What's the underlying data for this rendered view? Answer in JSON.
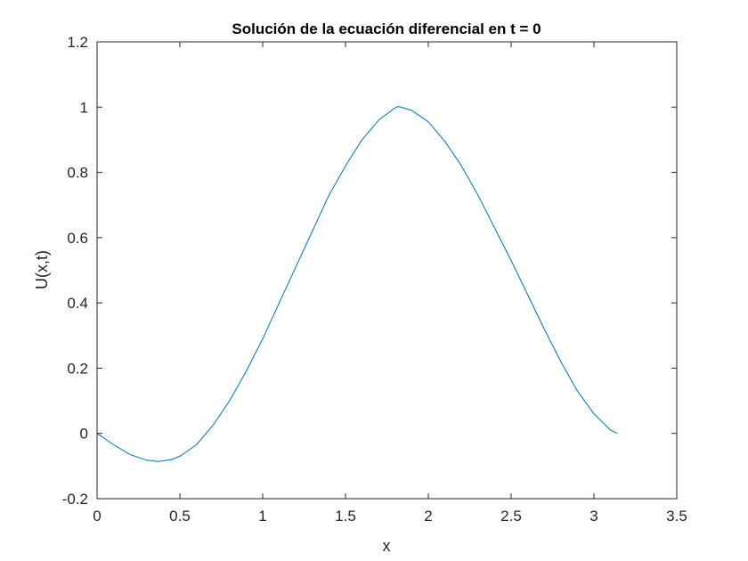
{
  "figure": {
    "background": "#ffffff"
  },
  "chart_data": {
    "type": "line",
    "title": "Solución de la ecuación diferencial en t = 0",
    "xlabel": "x",
    "ylabel": "U(x,t)",
    "xlim": [
      0,
      3.5
    ],
    "ylim": [
      -0.2,
      1.2
    ],
    "xticks": [
      0,
      0.5,
      1,
      1.5,
      2,
      2.5,
      3,
      3.5
    ],
    "xtick_labels": [
      "0",
      "0.5",
      "1",
      "1.5",
      "2",
      "2.5",
      "3",
      "3.5"
    ],
    "yticks": [
      -0.2,
      0,
      0.2,
      0.4,
      0.6,
      0.8,
      1,
      1.2
    ],
    "ytick_labels": [
      "-0.2",
      "0",
      "0.2",
      "0.4",
      "0.6",
      "0.8",
      "1",
      "1.2"
    ],
    "grid": false,
    "box": true,
    "series": [
      {
        "color": "#0072bd",
        "x": [
          0,
          0.1,
          0.2,
          0.3,
          0.37,
          0.45,
          0.5,
          0.6,
          0.7,
          0.8,
          0.9,
          1.0,
          1.1,
          1.2,
          1.3,
          1.4,
          1.5,
          1.6,
          1.7,
          1.8,
          1.82,
          1.9,
          2.0,
          2.1,
          2.2,
          2.3,
          2.4,
          2.5,
          2.6,
          2.7,
          2.8,
          2.9,
          3.0,
          3.1,
          3.1416
        ],
        "y": [
          0,
          -0.035,
          -0.065,
          -0.082,
          -0.086,
          -0.08,
          -0.07,
          -0.035,
          0.025,
          0.1,
          0.19,
          0.29,
          0.4,
          0.51,
          0.62,
          0.73,
          0.82,
          0.9,
          0.96,
          0.998,
          1.002,
          0.99,
          0.955,
          0.895,
          0.82,
          0.73,
          0.63,
          0.53,
          0.425,
          0.32,
          0.22,
          0.13,
          0.06,
          0.01,
          0
        ]
      }
    ]
  }
}
